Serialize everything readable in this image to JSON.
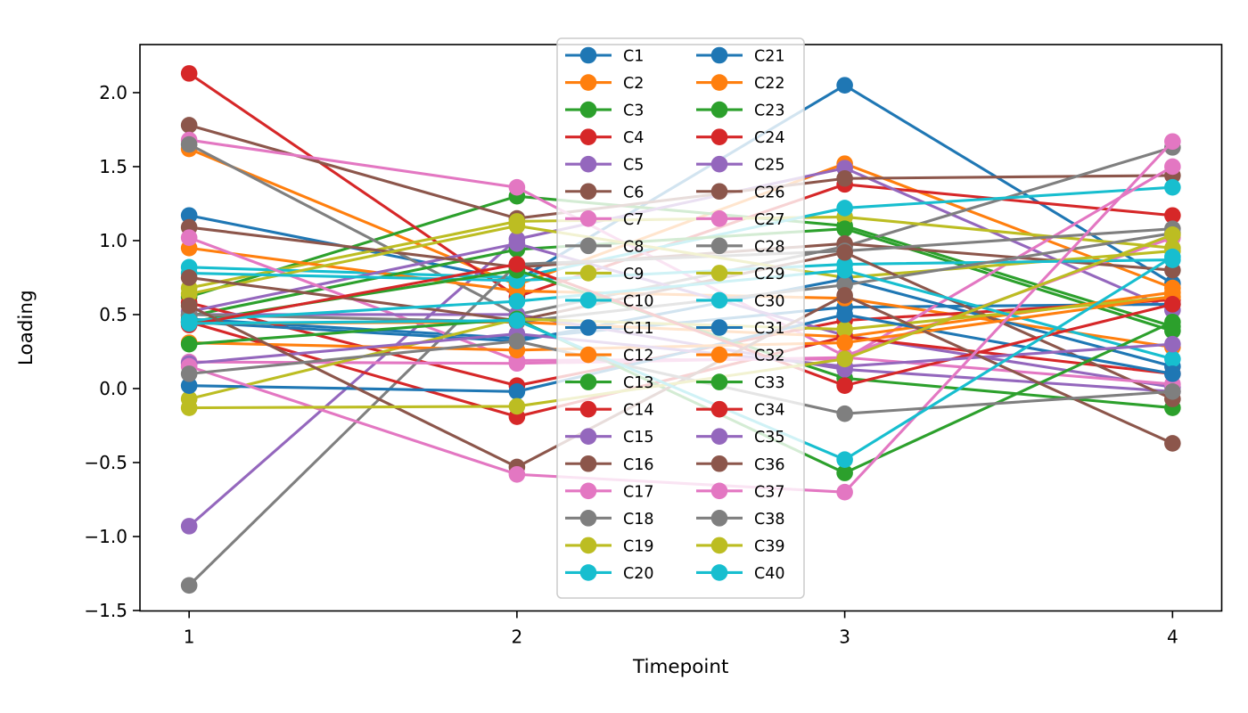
{
  "figure": {
    "kind": "matplotlib line plot, 40 series, legend centered inside axes"
  },
  "chart_data": {
    "type": "line",
    "title": "",
    "xlabel": "Timepoint",
    "ylabel": "Loading",
    "x": [
      1,
      2,
      3,
      4
    ],
    "xtick_labels": [
      "1",
      "2",
      "3",
      "4"
    ],
    "yticks": [
      2.0,
      1.5,
      1.0,
      0.5,
      0.0,
      -0.5,
      -1.0,
      -1.5
    ],
    "ytick_labels": [
      "2.0",
      "1.5",
      "1.0",
      "0.5",
      "0.0",
      "−0.5",
      "−1.0",
      "−1.5"
    ],
    "xlim": [
      0.85,
      4.15
    ],
    "ylim": [
      -1.503,
      2.325
    ],
    "grid": false,
    "legend": {
      "position": "inside axes, top-center, spans plot height",
      "columns": 2,
      "border_color": "#cccccc",
      "background": "rgba(255,255,255,0.8)"
    },
    "palette_note": "matplotlib tab10 cycle repeated 4 times",
    "series": [
      {
        "name": "C1",
        "color": "#1f77b4",
        "values": [
          1.17,
          0.73,
          2.05,
          0.71
        ]
      },
      {
        "name": "C2",
        "color": "#ff7f0e",
        "values": [
          1.62,
          0.7,
          1.52,
          0.68
        ]
      },
      {
        "name": "C3",
        "color": "#2ca02c",
        "values": [
          0.62,
          1.3,
          1.1,
          0.42
        ]
      },
      {
        "name": "C4",
        "color": "#d62728",
        "values": [
          2.13,
          0.62,
          1.38,
          1.17
        ]
      },
      {
        "name": "C5",
        "color": "#9467bd",
        "values": [
          -0.93,
          1.01,
          1.49,
          0.53
        ]
      },
      {
        "name": "C6",
        "color": "#8c564b",
        "values": [
          1.78,
          1.15,
          1.42,
          1.44
        ]
      },
      {
        "name": "C7",
        "color": "#e377c2",
        "values": [
          1.68,
          1.36,
          0.22,
          1.02
        ]
      },
      {
        "name": "C8",
        "color": "#7f7f7f",
        "values": [
          1.65,
          0.5,
          0.96,
          1.63
        ]
      },
      {
        "name": "C9",
        "color": "#bcbd22",
        "values": [
          0.68,
          1.13,
          1.16,
          0.95
        ]
      },
      {
        "name": "C10",
        "color": "#17becf",
        "values": [
          0.82,
          0.75,
          1.22,
          1.36
        ]
      },
      {
        "name": "C11",
        "color": "#1f77b4",
        "values": [
          0.47,
          0.34,
          0.55,
          0.57
        ]
      },
      {
        "name": "C12",
        "color": "#ff7f0e",
        "values": [
          0.95,
          0.66,
          0.61,
          0.28
        ]
      },
      {
        "name": "C13",
        "color": "#2ca02c",
        "values": [
          0.49,
          0.94,
          1.08,
          0.39
        ]
      },
      {
        "name": "C14",
        "color": "#d62728",
        "values": [
          0.58,
          0.02,
          0.46,
          0.6
        ]
      },
      {
        "name": "C15",
        "color": "#9467bd",
        "values": [
          0.52,
          0.98,
          0.36,
          0.01
        ]
      },
      {
        "name": "C16",
        "color": "#8c564b",
        "values": [
          1.09,
          0.82,
          0.98,
          0.8
        ]
      },
      {
        "name": "C17",
        "color": "#e377c2",
        "values": [
          1.02,
          0.19,
          0.2,
          1.5
        ]
      },
      {
        "name": "C18",
        "color": "#7f7f7f",
        "values": [
          -1.33,
          0.84,
          0.93,
          1.08
        ]
      },
      {
        "name": "C19",
        "color": "#bcbd22",
        "values": [
          0.64,
          1.1,
          0.75,
          0.93
        ]
      },
      {
        "name": "C20",
        "color": "#17becf",
        "values": [
          0.78,
          0.73,
          0.84,
          0.87
        ]
      },
      {
        "name": "C21",
        "color": "#1f77b4",
        "values": [
          0.45,
          0.32,
          0.74,
          0.15
        ]
      },
      {
        "name": "C22",
        "color": "#ff7f0e",
        "values": [
          0.44,
          0.45,
          0.35,
          0.65
        ]
      },
      {
        "name": "C23",
        "color": "#2ca02c",
        "values": [
          0.45,
          0.8,
          0.07,
          -0.13
        ]
      },
      {
        "name": "C24",
        "color": "#d62728",
        "values": [
          0.45,
          -0.19,
          0.35,
          0.1
        ]
      },
      {
        "name": "C25",
        "color": "#9467bd",
        "values": [
          0.5,
          0.5,
          0.13,
          -0.02
        ]
      },
      {
        "name": "C26",
        "color": "#8c564b",
        "values": [
          0.75,
          0.46,
          0.92,
          -0.07
        ]
      },
      {
        "name": "C27",
        "color": "#e377c2",
        "values": [
          0.18,
          0.17,
          0.21,
          0.03
        ]
      },
      {
        "name": "C28",
        "color": "#7f7f7f",
        "values": [
          0.5,
          0.45,
          0.7,
          1.05
        ]
      },
      {
        "name": "C29",
        "color": "#bcbd22",
        "values": [
          -0.07,
          0.47,
          0.4,
          0.62
        ]
      },
      {
        "name": "C30",
        "color": "#17becf",
        "values": [
          0.46,
          0.59,
          0.8,
          0.2
        ]
      },
      {
        "name": "C31",
        "color": "#1f77b4",
        "values": [
          0.02,
          -0.02,
          0.5,
          0.1
        ]
      },
      {
        "name": "C32",
        "color": "#ff7f0e",
        "values": [
          0.31,
          0.26,
          0.31,
          0.62
        ]
      },
      {
        "name": "C33",
        "color": "#2ca02c",
        "values": [
          0.3,
          0.47,
          -0.57,
          0.45
        ]
      },
      {
        "name": "C34",
        "color": "#d62728",
        "values": [
          0.43,
          0.84,
          0.02,
          0.57
        ]
      },
      {
        "name": "C35",
        "color": "#9467bd",
        "values": [
          0.17,
          0.37,
          0.15,
          0.3
        ]
      },
      {
        "name": "C36",
        "color": "#8c564b",
        "values": [
          0.56,
          -0.53,
          0.63,
          -0.37
        ]
      },
      {
        "name": "C37",
        "color": "#e377c2",
        "values": [
          0.15,
          -0.58,
          -0.7,
          1.67
        ]
      },
      {
        "name": "C38",
        "color": "#7f7f7f",
        "values": [
          0.1,
          0.32,
          -0.17,
          -0.02
        ]
      },
      {
        "name": "C39",
        "color": "#bcbd22",
        "values": [
          -0.13,
          -0.12,
          0.2,
          1.04
        ]
      },
      {
        "name": "C40",
        "color": "#17becf",
        "values": [
          0.44,
          0.46,
          -0.48,
          0.89
        ]
      }
    ]
  }
}
